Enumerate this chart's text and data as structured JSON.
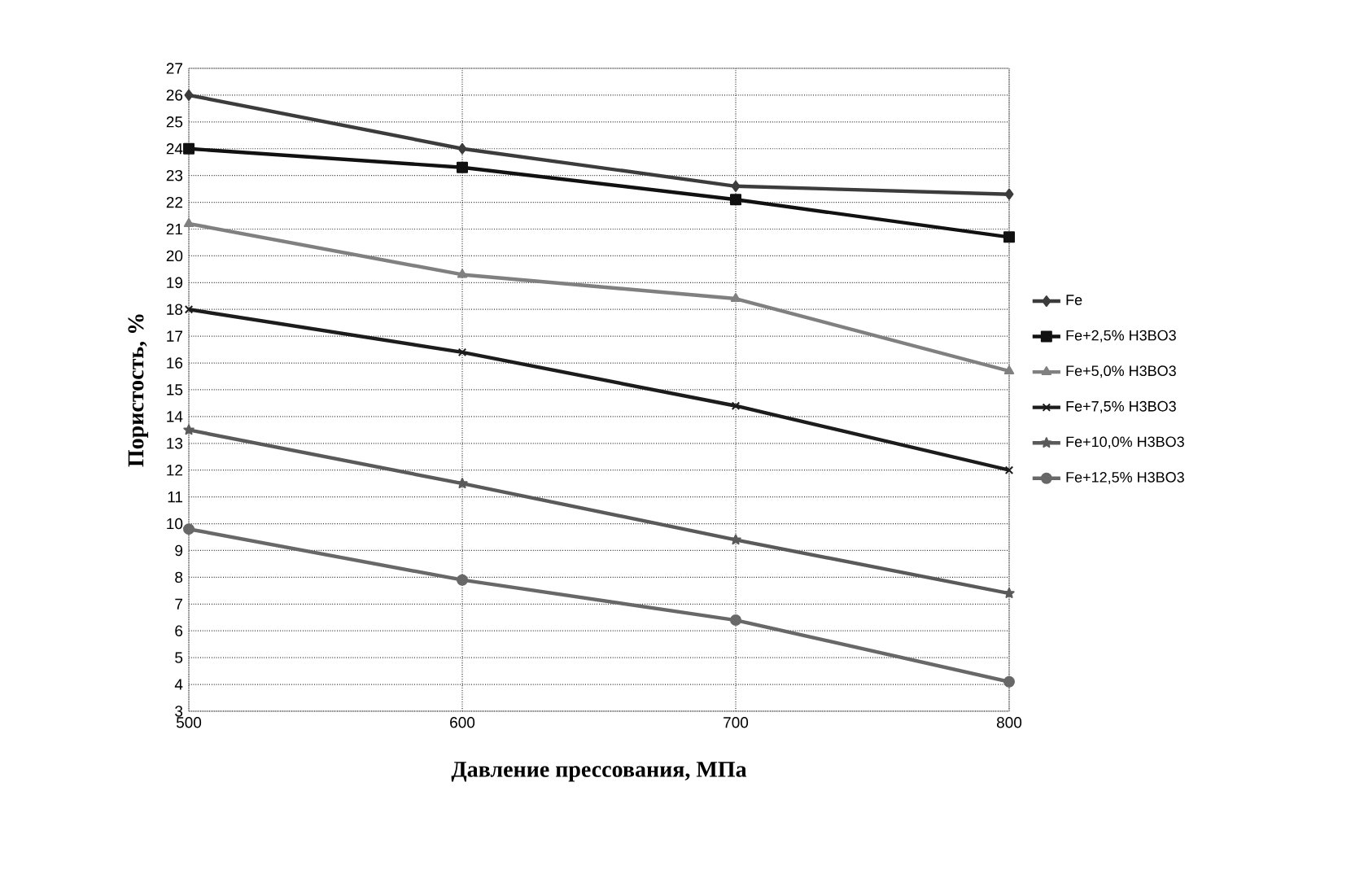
{
  "chart_data": {
    "type": "line",
    "xlabel": "Давление прессования, МПа",
    "ylabel": "Пористость, %",
    "x": [
      500,
      600,
      700,
      800
    ],
    "series": [
      {
        "name": "Fe",
        "color": "#3c3c3c",
        "marker": "diamond",
        "values": [
          26,
          24,
          22.6,
          22.3
        ]
      },
      {
        "name": "Fe+2,5% H3BO3",
        "color": "#111111",
        "marker": "square",
        "values": [
          24,
          23.3,
          22.1,
          20.7
        ]
      },
      {
        "name": "Fe+5,0% H3BO3",
        "color": "#808080",
        "marker": "triangle",
        "values": [
          21.2,
          19.3,
          18.4,
          15.7
        ]
      },
      {
        "name": "Fe+7,5% H3BO3",
        "color": "#1c1c1c",
        "marker": "cross",
        "values": [
          18,
          16.4,
          14.4,
          12
        ]
      },
      {
        "name": "Fe+10,0% H3BO3",
        "color": "#5a5a5a",
        "marker": "star",
        "values": [
          13.5,
          11.5,
          9.4,
          7.4
        ]
      },
      {
        "name": "Fe+12,5% H3BO3",
        "color": "#686868",
        "marker": "circle",
        "values": [
          9.8,
          7.9,
          6.4,
          4.1
        ]
      }
    ],
    "xlim": [
      500,
      800
    ],
    "xticks": [
      500,
      600,
      700,
      800
    ],
    "ylim": [
      3,
      27
    ],
    "yticks": [
      3,
      4,
      5,
      6,
      7,
      8,
      9,
      10,
      11,
      12,
      13,
      14,
      15,
      16,
      17,
      18,
      19,
      20,
      21,
      22,
      23,
      24,
      25,
      26,
      27
    ],
    "grid": true,
    "legend": "right",
    "line_style": "solid"
  }
}
